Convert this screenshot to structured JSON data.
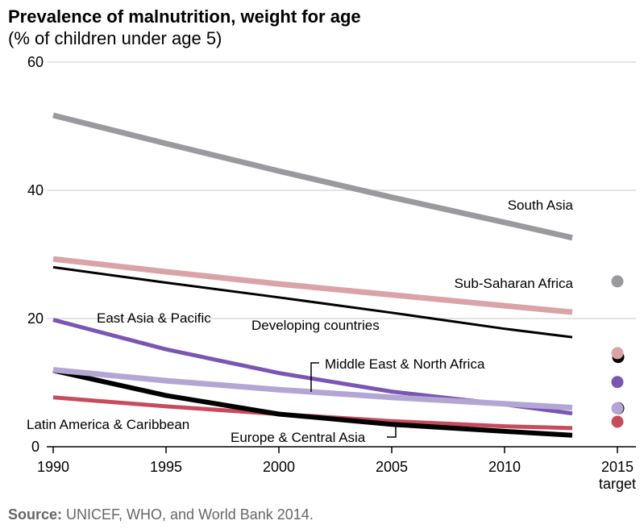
{
  "chart_data": {
    "type": "line",
    "title": "Prevalence of malnutrition, weight for age",
    "subtitle": "(% of children under age 5)",
    "x": [
      1990,
      1995,
      2000,
      2005,
      2010,
      2013
    ],
    "x_ticks": [
      "1990",
      "1995",
      "2000",
      "2005",
      "2010",
      "2015"
    ],
    "x_target_label": "target",
    "ylim": [
      0,
      60
    ],
    "y_ticks": [
      "0",
      "20",
      "40",
      "60"
    ],
    "grid": true,
    "series": [
      {
        "name": "South Asia",
        "color": "#9a9a9e",
        "values": [
          51.7,
          47.3,
          43.0,
          38.9,
          35.0,
          32.6
        ],
        "target": 25.8
      },
      {
        "name": "Sub-Saharan Africa",
        "color": "#d9a3a8",
        "values": [
          29.3,
          27.3,
          25.4,
          23.7,
          22.0,
          21.0
        ],
        "target": 14.6
      },
      {
        "name": "Developing countries",
        "color": "#000000",
        "values": [
          28.0,
          25.6,
          23.3,
          20.9,
          18.4,
          17.1
        ],
        "target": 14.0
      },
      {
        "name": "East Asia & Pacific",
        "color": "#7b55b3",
        "values": [
          19.8,
          15.2,
          11.5,
          8.6,
          6.6,
          5.2
        ],
        "target": 10.1
      },
      {
        "name": "Middle East & North Africa",
        "color": "#b3a6d4",
        "values": [
          12.0,
          10.3,
          8.9,
          7.7,
          6.7,
          6.1
        ],
        "target": 6.0
      },
      {
        "name": "Latin America & Caribbean",
        "color": "#c64b5d",
        "values": [
          7.7,
          6.3,
          5.1,
          4.0,
          3.2,
          2.9
        ],
        "target": 3.9
      },
      {
        "name": "Europe & Central Asia",
        "color": "#000000",
        "values": [
          11.9,
          8.0,
          5.1,
          3.5,
          2.4,
          1.8
        ],
        "target": 6.0
      }
    ]
  },
  "source": {
    "label": "Source:",
    "text": " UNICEF, WHO, and World Bank 2014."
  }
}
